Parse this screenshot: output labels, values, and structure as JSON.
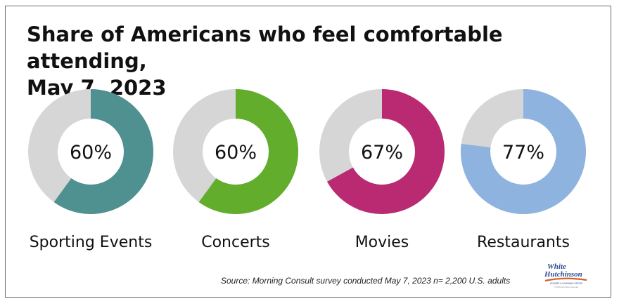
{
  "title_lines": [
    "Share of Americans who feel comfortable attending,",
    "May 7, 2023"
  ],
  "chart_data": {
    "type": "donut",
    "categories": [
      "Sporting Events",
      "Concerts",
      "Movies",
      "Restaurants"
    ],
    "values": [
      60,
      60,
      67,
      77
    ],
    "value_labels": [
      "60%",
      "60%",
      "67%",
      "77%"
    ],
    "max": 100,
    "colors": [
      "#4e9190",
      "#62ad2c",
      "#b92a73",
      "#8db3de"
    ],
    "remainder_color": "#d6d6d6",
    "title": "Share of Americans who feel comfortable attending, May 7, 2023"
  },
  "source": "Source: Morning Consult survey conducted May 7, 2023 n= 2,200 U.S. adults",
  "logo": {
    "line1": "White",
    "line2": "Hutchinson",
    "tagline": "LEISURE & LEARNING GROUP",
    "copyright": "© 2023 all rights reserved",
    "colors": [
      "#2c4b8e",
      "#d5602b",
      "#e3c28a"
    ]
  }
}
